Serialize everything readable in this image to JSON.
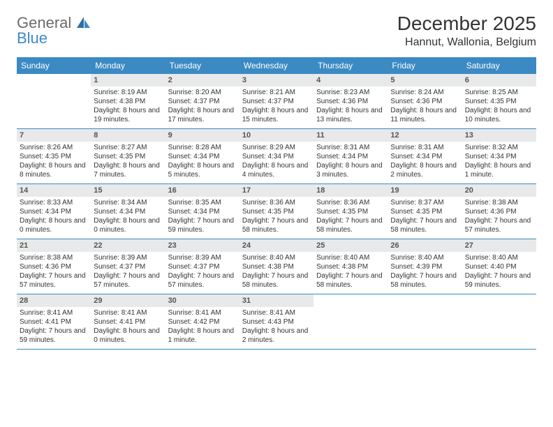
{
  "logo": {
    "line1": "General",
    "line2": "Blue"
  },
  "title": "December 2025",
  "location": "Hannut, Wallonia, Belgium",
  "colors": {
    "header_bg": "#3b8ac4",
    "day_band_bg": "#e8e9ea",
    "row_border": "#3b8ac4",
    "text": "#333333"
  },
  "dayHeaders": [
    "Sunday",
    "Monday",
    "Tuesday",
    "Wednesday",
    "Thursday",
    "Friday",
    "Saturday"
  ],
  "weeks": [
    [
      {
        "empty": true
      },
      {
        "num": "1",
        "sunrise": "Sunrise: 8:19 AM",
        "sunset": "Sunset: 4:38 PM",
        "daylight": "Daylight: 8 hours and 19 minutes."
      },
      {
        "num": "2",
        "sunrise": "Sunrise: 8:20 AM",
        "sunset": "Sunset: 4:37 PM",
        "daylight": "Daylight: 8 hours and 17 minutes."
      },
      {
        "num": "3",
        "sunrise": "Sunrise: 8:21 AM",
        "sunset": "Sunset: 4:37 PM",
        "daylight": "Daylight: 8 hours and 15 minutes."
      },
      {
        "num": "4",
        "sunrise": "Sunrise: 8:23 AM",
        "sunset": "Sunset: 4:36 PM",
        "daylight": "Daylight: 8 hours and 13 minutes."
      },
      {
        "num": "5",
        "sunrise": "Sunrise: 8:24 AM",
        "sunset": "Sunset: 4:36 PM",
        "daylight": "Daylight: 8 hours and 11 minutes."
      },
      {
        "num": "6",
        "sunrise": "Sunrise: 8:25 AM",
        "sunset": "Sunset: 4:35 PM",
        "daylight": "Daylight: 8 hours and 10 minutes."
      }
    ],
    [
      {
        "num": "7",
        "sunrise": "Sunrise: 8:26 AM",
        "sunset": "Sunset: 4:35 PM",
        "daylight": "Daylight: 8 hours and 8 minutes."
      },
      {
        "num": "8",
        "sunrise": "Sunrise: 8:27 AM",
        "sunset": "Sunset: 4:35 PM",
        "daylight": "Daylight: 8 hours and 7 minutes."
      },
      {
        "num": "9",
        "sunrise": "Sunrise: 8:28 AM",
        "sunset": "Sunset: 4:34 PM",
        "daylight": "Daylight: 8 hours and 5 minutes."
      },
      {
        "num": "10",
        "sunrise": "Sunrise: 8:29 AM",
        "sunset": "Sunset: 4:34 PM",
        "daylight": "Daylight: 8 hours and 4 minutes."
      },
      {
        "num": "11",
        "sunrise": "Sunrise: 8:31 AM",
        "sunset": "Sunset: 4:34 PM",
        "daylight": "Daylight: 8 hours and 3 minutes."
      },
      {
        "num": "12",
        "sunrise": "Sunrise: 8:31 AM",
        "sunset": "Sunset: 4:34 PM",
        "daylight": "Daylight: 8 hours and 2 minutes."
      },
      {
        "num": "13",
        "sunrise": "Sunrise: 8:32 AM",
        "sunset": "Sunset: 4:34 PM",
        "daylight": "Daylight: 8 hours and 1 minute."
      }
    ],
    [
      {
        "num": "14",
        "sunrise": "Sunrise: 8:33 AM",
        "sunset": "Sunset: 4:34 PM",
        "daylight": "Daylight: 8 hours and 0 minutes."
      },
      {
        "num": "15",
        "sunrise": "Sunrise: 8:34 AM",
        "sunset": "Sunset: 4:34 PM",
        "daylight": "Daylight: 8 hours and 0 minutes."
      },
      {
        "num": "16",
        "sunrise": "Sunrise: 8:35 AM",
        "sunset": "Sunset: 4:34 PM",
        "daylight": "Daylight: 7 hours and 59 minutes."
      },
      {
        "num": "17",
        "sunrise": "Sunrise: 8:36 AM",
        "sunset": "Sunset: 4:35 PM",
        "daylight": "Daylight: 7 hours and 58 minutes."
      },
      {
        "num": "18",
        "sunrise": "Sunrise: 8:36 AM",
        "sunset": "Sunset: 4:35 PM",
        "daylight": "Daylight: 7 hours and 58 minutes."
      },
      {
        "num": "19",
        "sunrise": "Sunrise: 8:37 AM",
        "sunset": "Sunset: 4:35 PM",
        "daylight": "Daylight: 7 hours and 58 minutes."
      },
      {
        "num": "20",
        "sunrise": "Sunrise: 8:38 AM",
        "sunset": "Sunset: 4:36 PM",
        "daylight": "Daylight: 7 hours and 57 minutes."
      }
    ],
    [
      {
        "num": "21",
        "sunrise": "Sunrise: 8:38 AM",
        "sunset": "Sunset: 4:36 PM",
        "daylight": "Daylight: 7 hours and 57 minutes."
      },
      {
        "num": "22",
        "sunrise": "Sunrise: 8:39 AM",
        "sunset": "Sunset: 4:37 PM",
        "daylight": "Daylight: 7 hours and 57 minutes."
      },
      {
        "num": "23",
        "sunrise": "Sunrise: 8:39 AM",
        "sunset": "Sunset: 4:37 PM",
        "daylight": "Daylight: 7 hours and 57 minutes."
      },
      {
        "num": "24",
        "sunrise": "Sunrise: 8:40 AM",
        "sunset": "Sunset: 4:38 PM",
        "daylight": "Daylight: 7 hours and 58 minutes."
      },
      {
        "num": "25",
        "sunrise": "Sunrise: 8:40 AM",
        "sunset": "Sunset: 4:38 PM",
        "daylight": "Daylight: 7 hours and 58 minutes."
      },
      {
        "num": "26",
        "sunrise": "Sunrise: 8:40 AM",
        "sunset": "Sunset: 4:39 PM",
        "daylight": "Daylight: 7 hours and 58 minutes."
      },
      {
        "num": "27",
        "sunrise": "Sunrise: 8:40 AM",
        "sunset": "Sunset: 4:40 PM",
        "daylight": "Daylight: 7 hours and 59 minutes."
      }
    ],
    [
      {
        "num": "28",
        "sunrise": "Sunrise: 8:41 AM",
        "sunset": "Sunset: 4:41 PM",
        "daylight": "Daylight: 7 hours and 59 minutes."
      },
      {
        "num": "29",
        "sunrise": "Sunrise: 8:41 AM",
        "sunset": "Sunset: 4:41 PM",
        "daylight": "Daylight: 8 hours and 0 minutes."
      },
      {
        "num": "30",
        "sunrise": "Sunrise: 8:41 AM",
        "sunset": "Sunset: 4:42 PM",
        "daylight": "Daylight: 8 hours and 1 minute."
      },
      {
        "num": "31",
        "sunrise": "Sunrise: 8:41 AM",
        "sunset": "Sunset: 4:43 PM",
        "daylight": "Daylight: 8 hours and 2 minutes."
      },
      {
        "empty": true
      },
      {
        "empty": true
      },
      {
        "empty": true
      }
    ]
  ]
}
